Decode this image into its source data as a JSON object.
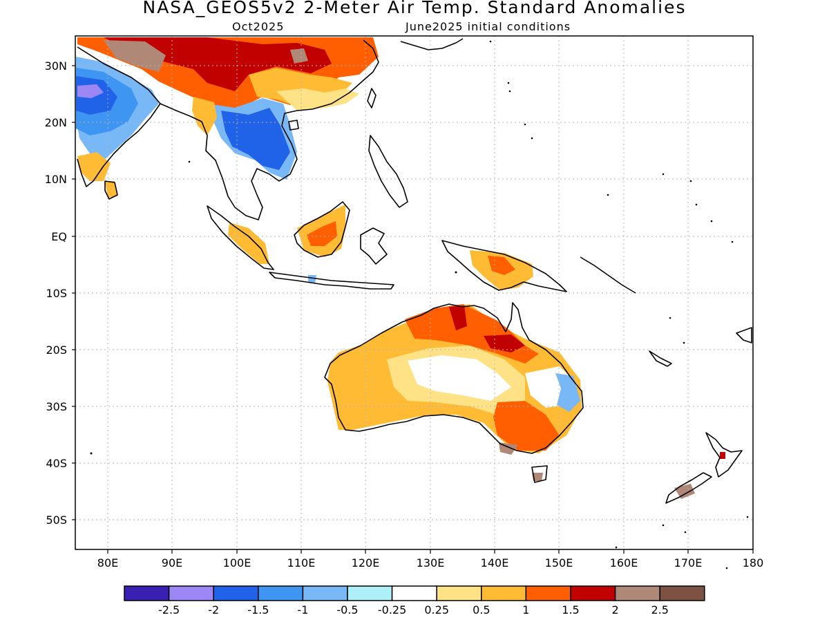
{
  "title": "NASA_GEOS5v2 2-Meter Air Temp. Standard Anomalies",
  "subtitle_left": "Oct2025",
  "subtitle_right": "June2025 initial conditions",
  "lat_labels": [
    "30N",
    "20N",
    "10N",
    "EQ",
    "10S",
    "20S",
    "30S",
    "40S",
    "50S"
  ],
  "lon_labels": [
    "80E",
    "90E",
    "100E",
    "110E",
    "120E",
    "130E",
    "140E",
    "150E",
    "160E",
    "170E",
    "180"
  ],
  "colorbar": {
    "colors": [
      "#3a1fb3",
      "#9d87f5",
      "#2163e8",
      "#3f96f2",
      "#78b8f7",
      "#aef0fa",
      "#ffffff",
      "#ffe286",
      "#ffbb34",
      "#ff5f00",
      "#c10000",
      "#b08878",
      "#7d5242"
    ],
    "labels": [
      "-2.5",
      "-2",
      "-1.5",
      "-1",
      "-0.5",
      "-0.25",
      "0.25",
      "0.5",
      "1",
      "1.5",
      "2",
      "2.5"
    ]
  }
}
